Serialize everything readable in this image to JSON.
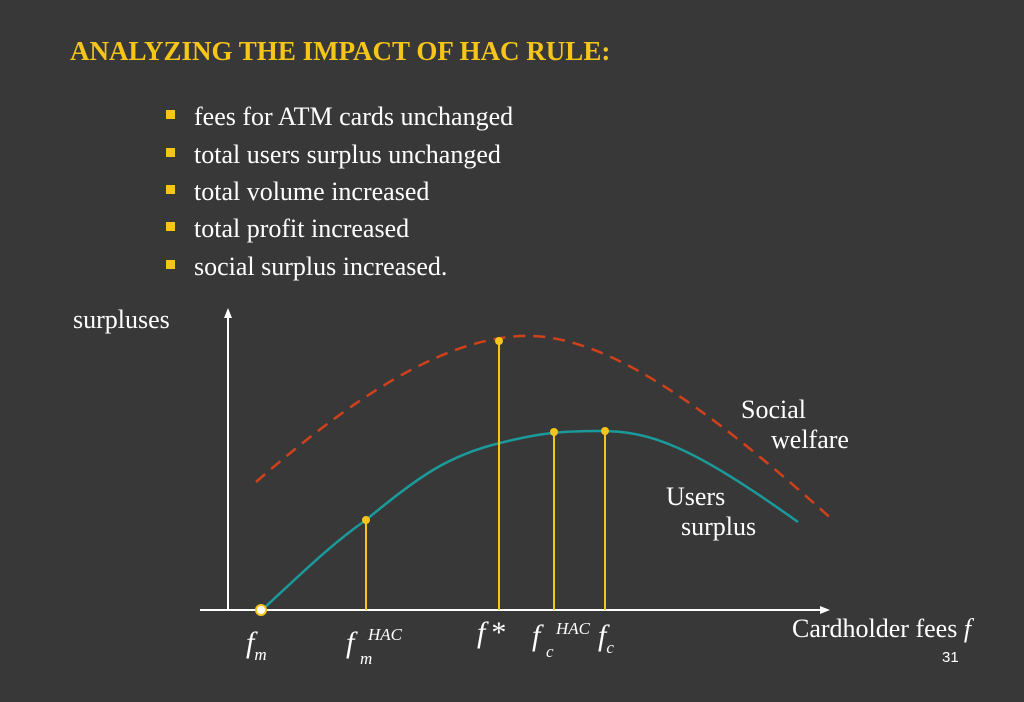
{
  "title": "ANALYZING THE IMPACT OF HAC RULE:",
  "bullets": [
    "fees for ATM cards unchanged",
    "total users surplus unchanged",
    "total volume increased",
    "total profit increased",
    "social surplus increased."
  ],
  "diagram": {
    "y_axis_label": "surpluses",
    "x_axis_label": {
      "text": "Cardholder fees",
      "symbol": "f"
    },
    "curves": [
      {
        "name": [
          "Social",
          "welfare"
        ]
      },
      {
        "name": [
          "Users",
          "surplus"
        ]
      }
    ],
    "ticks": [
      {
        "base": "f",
        "sub": "m"
      },
      {
        "base": "f",
        "sub": "m",
        "sup": "HAC"
      },
      {
        "base": "f",
        "sup": "*"
      },
      {
        "base": "f",
        "sub": "c",
        "sup": "HAC"
      },
      {
        "base": "f",
        "sub": "c"
      }
    ]
  },
  "page_number": "31"
}
